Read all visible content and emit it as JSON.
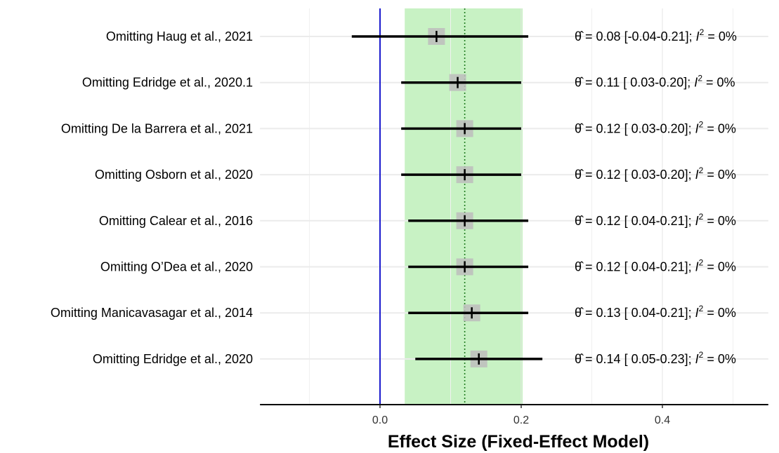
{
  "chart_data": {
    "type": "forest",
    "xlabel": "Effect Size (Fixed-Effect Model)",
    "xlim": [
      -0.17,
      0.55
    ],
    "x_ticks": [
      0.0,
      0.2,
      0.4
    ],
    "x_tick_labels": [
      "0.0",
      "0.2",
      "0.4"
    ],
    "grid": true,
    "reference_line": {
      "x": 0.0,
      "color": "#1a1acd"
    },
    "pooled_estimate": 0.12,
    "pooled_ci": [
      0.035,
      0.202
    ],
    "ci_band_color": "#c8f2c4",
    "stat_symbol": "θ̂",
    "i2_symbol": "I",
    "i2_exponent": "2",
    "studies": [
      {
        "label": "Omitting Haug et al., 2021",
        "estimate": 0.08,
        "ci": [
          -0.04,
          0.21
        ],
        "stat_label": "= 0.08 [-0.04-0.21];",
        "i2": "= 0%"
      },
      {
        "label": "Omitting Edridge et al., 2020.1",
        "estimate": 0.11,
        "ci": [
          0.03,
          0.2
        ],
        "stat_label": "= 0.11 [ 0.03-0.20];",
        "i2": "= 0%"
      },
      {
        "label": "Omitting De la Barrera et al., 2021",
        "estimate": 0.12,
        "ci": [
          0.03,
          0.2
        ],
        "stat_label": "= 0.12 [ 0.03-0.20];",
        "i2": "= 0%"
      },
      {
        "label": "Omitting Osborn et al., 2020",
        "estimate": 0.12,
        "ci": [
          0.03,
          0.2
        ],
        "stat_label": "= 0.12 [ 0.03-0.20];",
        "i2": "= 0%"
      },
      {
        "label": "Omitting Calear et al., 2016",
        "estimate": 0.12,
        "ci": [
          0.04,
          0.21
        ],
        "stat_label": "= 0.12 [ 0.04-0.21];",
        "i2": "= 0%"
      },
      {
        "label": "Omitting O’Dea et al., 2020",
        "estimate": 0.12,
        "ci": [
          0.04,
          0.21
        ],
        "stat_label": "= 0.12 [ 0.04-0.21];",
        "i2": "= 0%"
      },
      {
        "label": "Omitting Manicavasagar et al., 2014",
        "estimate": 0.13,
        "ci": [
          0.04,
          0.21
        ],
        "stat_label": "= 0.13 [ 0.04-0.21];",
        "i2": "= 0%"
      },
      {
        "label": "Omitting Edridge et al., 2020",
        "estimate": 0.14,
        "ci": [
          0.05,
          0.23
        ],
        "stat_label": "= 0.14 [ 0.05-0.23];",
        "i2": "= 0%"
      }
    ]
  }
}
